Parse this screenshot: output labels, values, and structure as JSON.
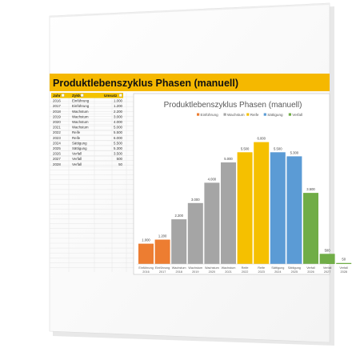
{
  "banner": {
    "title": "Produktlebenszyklus Phasen (manuell)"
  },
  "table": {
    "headers": [
      "Jahr",
      "Zyklus",
      "Umsatz"
    ],
    "rows": [
      [
        "2016",
        "Einführung",
        "1.000"
      ],
      [
        "2017",
        "Einführung",
        "1.200"
      ],
      [
        "2018",
        "Wachstum",
        "2.200"
      ],
      [
        "2019",
        "Wachstum",
        "3.000"
      ],
      [
        "2020",
        "Wachstum",
        "4.000"
      ],
      [
        "2021",
        "Wachstum",
        "5.000"
      ],
      [
        "2022",
        "Reife",
        "5.500"
      ],
      [
        "2023",
        "Reife",
        "6.000"
      ],
      [
        "2024",
        "Sättigung",
        "5.500"
      ],
      [
        "2025",
        "Sättigung",
        "5.300"
      ],
      [
        "2026",
        "Verfall",
        "3.500"
      ],
      [
        "2027",
        "Verfall",
        "500"
      ],
      [
        "2028",
        "Verfall",
        "50"
      ]
    ]
  },
  "colors": {
    "banner": "#f5b800",
    "header_fill": "#f3c300",
    "Einführung": "#ed7d31",
    "Wachstum": "#a5a5a5",
    "Reife": "#f5c000",
    "Sättigung": "#5b9bd5",
    "Verfall": "#70ad47"
  },
  "chart_data": {
    "type": "bar",
    "title": "Produktlebenszyklus Phasen (manuell)",
    "legend": [
      "Einführung",
      "Wachstum",
      "Reife",
      "Sättigung",
      "Verfall"
    ],
    "legend_position": "top",
    "categories": [
      [
        "Einführung",
        "2016"
      ],
      [
        "Einführung",
        "2017"
      ],
      [
        "Wachstum",
        "2018"
      ],
      [
        "Wachstum",
        "2019"
      ],
      [
        "Wachstum",
        "2020"
      ],
      [
        "Wachstum",
        "2021"
      ],
      [
        "Reife",
        "2022"
      ],
      [
        "Reife",
        "2023"
      ],
      [
        "Sättigung",
        "2024"
      ],
      [
        "Sättigung",
        "2025"
      ],
      [
        "Verfall",
        "2026"
      ],
      [
        "Verfall",
        "2027"
      ],
      [
        "Verfall",
        "2028"
      ]
    ],
    "phases": [
      "Einführung",
      "Einführung",
      "Wachstum",
      "Wachstum",
      "Wachstum",
      "Wachstum",
      "Reife",
      "Reife",
      "Sättigung",
      "Sättigung",
      "Verfall",
      "Verfall",
      "Verfall"
    ],
    "values": [
      1000,
      1200,
      2200,
      3000,
      4000,
      5000,
      5500,
      6000,
      5500,
      5300,
      3500,
      500,
      50
    ],
    "data_labels": [
      "1.000",
      "1.200",
      "2.200",
      "3.000",
      "4.000",
      "5.000",
      "5.500",
      "6.000",
      "5.500",
      "5.300",
      "3.500",
      "500",
      "50"
    ],
    "ylim": [
      0,
      6300
    ],
    "grid": false
  }
}
